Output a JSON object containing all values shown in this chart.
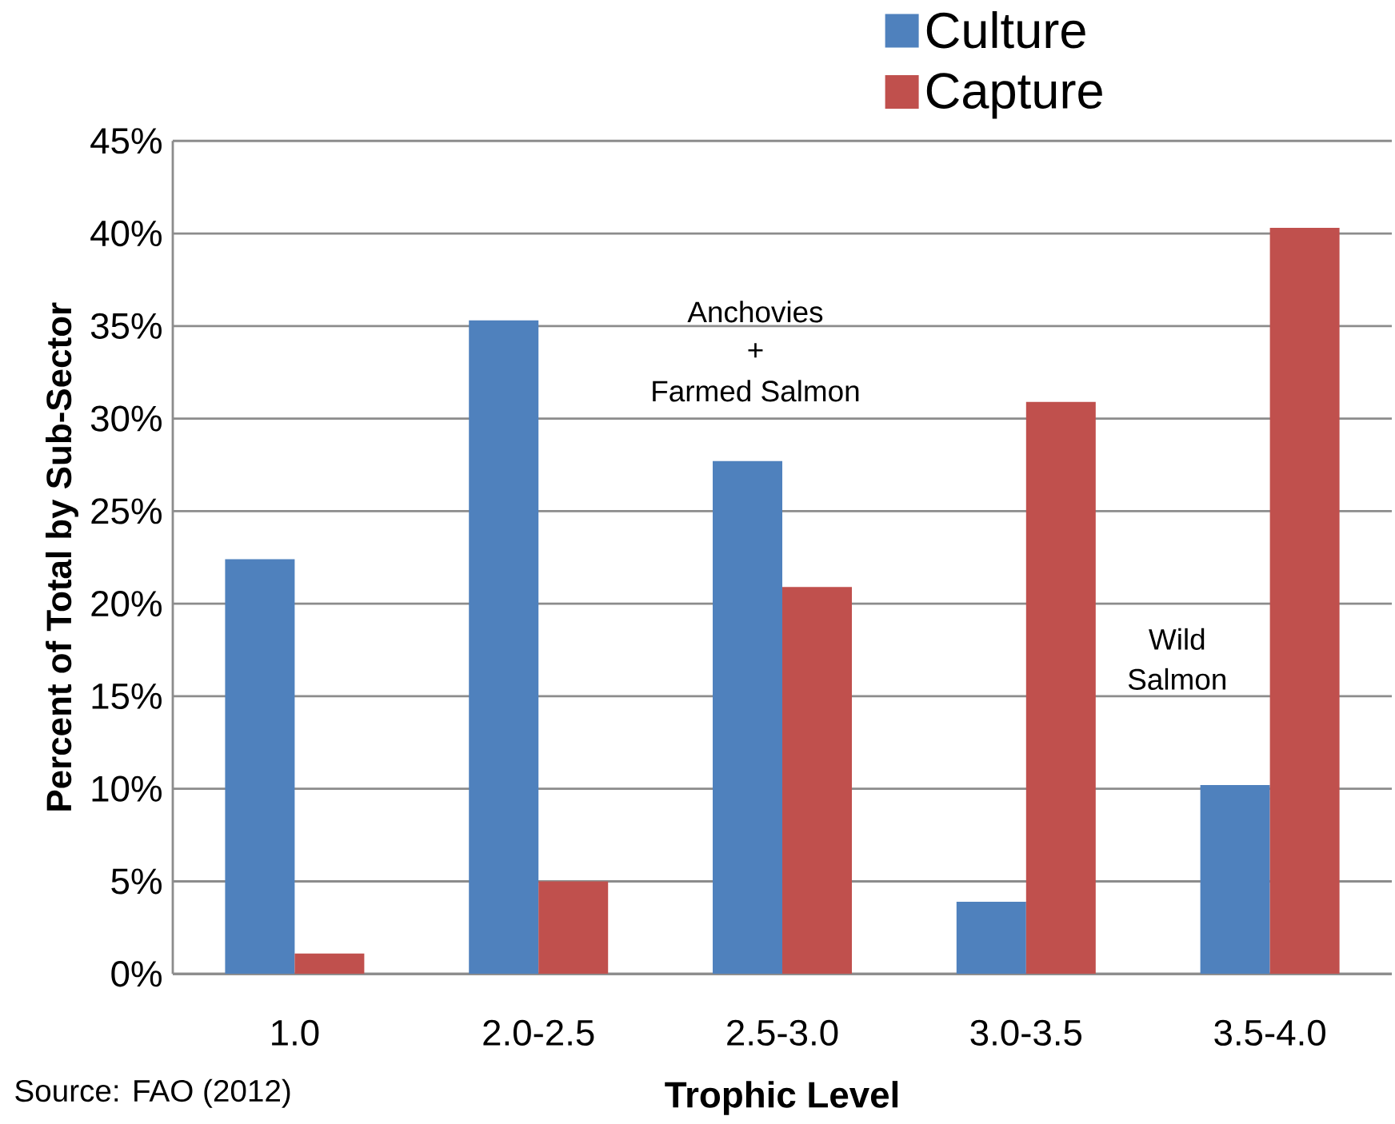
{
  "chart_data": {
    "type": "bar",
    "xlabel": "Trophic Level",
    "ylabel": "Percent of Total by Sub-Sector",
    "categories": [
      "1.0",
      "2.0-2.5",
      "2.5-3.0",
      "3.0-3.5",
      "3.5-4.0"
    ],
    "series": [
      {
        "name": "Culture",
        "color": "#4f81bd",
        "values": [
          22.4,
          35.3,
          27.7,
          3.9,
          10.2
        ]
      },
      {
        "name": "Capture",
        "color": "#c0504d",
        "values": [
          1.1,
          5.0,
          20.9,
          30.9,
          40.3
        ]
      }
    ],
    "ylim": [
      0,
      45
    ],
    "yticks": [
      {
        "value": 0,
        "label": "0%"
      },
      {
        "value": 5,
        "label": "5%"
      },
      {
        "value": 10,
        "label": "10%"
      },
      {
        "value": 15,
        "label": "15%"
      },
      {
        "value": 20,
        "label": "20%"
      },
      {
        "value": 25,
        "label": "25%"
      },
      {
        "value": 30,
        "label": "30%"
      },
      {
        "value": 35,
        "label": "35%"
      },
      {
        "value": 40,
        "label": "40%"
      },
      {
        "value": 45,
        "label": "45%"
      }
    ],
    "grid": "y",
    "legend": "top right",
    "annotations": [
      "Anchovies",
      "+",
      "Farmed Salmon",
      "Wild",
      "Salmon",
      "Source: FAO (2012)"
    ]
  }
}
